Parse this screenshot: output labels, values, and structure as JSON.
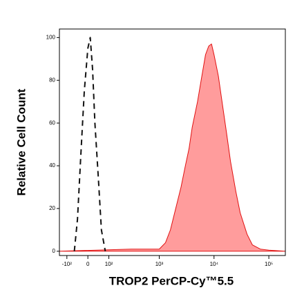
{
  "chart_data": {
    "type": "histogram-overlay",
    "xlabel": "TROP2 PerCP-Cy™5.5",
    "ylabel": "Relative Cell Count",
    "xscale": "biexponential",
    "xlim": [
      -150,
      200000
    ],
    "ylim": [
      -2,
      104
    ],
    "xticks": [
      {
        "value": -100,
        "label": "-10²"
      },
      0,
      {
        "value": 100,
        "label": "10²"
      },
      {
        "value": 1000,
        "label": "10³"
      },
      {
        "value": 10000,
        "label": "10⁴"
      },
      {
        "value": 100000,
        "label": "10⁵"
      }
    ],
    "yticks": [
      0,
      20,
      40,
      60,
      80,
      100
    ],
    "series": [
      {
        "color": "#e01010",
        "fill": "#ff9c9c",
        "dashed": false,
        "x": [
          -150,
          300,
          600,
          1000,
          1300,
          1600,
          2000,
          2500,
          3000,
          3500,
          4000,
          5000,
          6000,
          7000,
          8000,
          9000,
          10000,
          12000,
          14000,
          17000,
          20000,
          25000,
          30000,
          40000,
          50000,
          70000,
          100000,
          200000
        ],
        "values": [
          0,
          1,
          1,
          1,
          4,
          10,
          20,
          30,
          40,
          48,
          58,
          70,
          82,
          92,
          96,
          97,
          92,
          82,
          70,
          55,
          42,
          28,
          18,
          8,
          3,
          1,
          0.5,
          0
        ]
      },
      {
        "color": "#111111",
        "fill": "none",
        "dashed": true,
        "x": [
          -60,
          -45,
          -30,
          -15,
          0,
          10,
          20,
          30,
          45,
          60,
          80
        ],
        "values": [
          0,
          15,
          45,
          75,
          95,
          100,
          85,
          60,
          35,
          10,
          0
        ]
      }
    ]
  }
}
